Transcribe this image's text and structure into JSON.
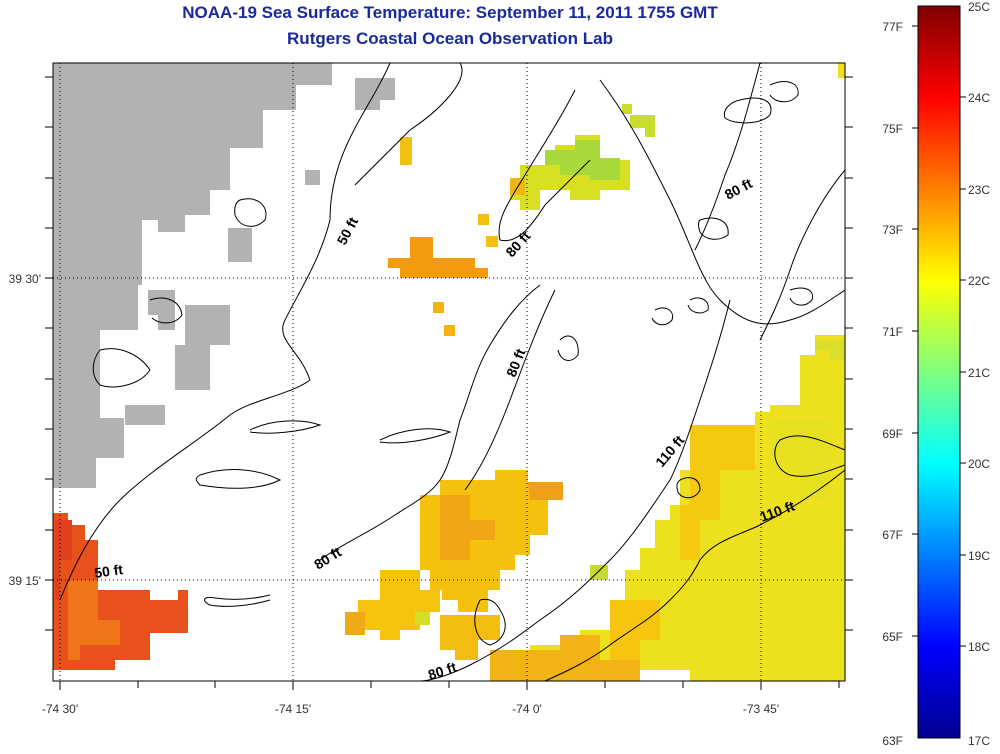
{
  "title": "NOAA-19 Sea Surface Temperature:  September 11, 2011 1755 GMT",
  "subtitle": "Rutgers Coastal Ocean Observation Lab",
  "map": {
    "x_ticks": [
      "-74 30'",
      "-74 15'",
      "-74 0'",
      "-73 45'"
    ],
    "y_ticks": [
      "39 30'",
      "39 15'"
    ],
    "depth_labels": [
      "50 ft",
      "50 ft",
      "80 ft",
      "80 ft",
      "80 ft",
      "80 ft",
      "80 ft",
      "110 ft",
      "110 ft"
    ],
    "land_color": "#b2b2b2",
    "graticule": "dotted"
  },
  "colorbar": {
    "f_labels": [
      "77F",
      "75F",
      "73F",
      "71F",
      "69F",
      "67F",
      "65F",
      "63F"
    ],
    "c_labels": [
      "25C",
      "24C",
      "23C",
      "22C",
      "21C",
      "20C",
      "19C",
      "18C",
      "17C"
    ],
    "range_c": [
      17,
      25
    ],
    "colormap": "jet"
  }
}
